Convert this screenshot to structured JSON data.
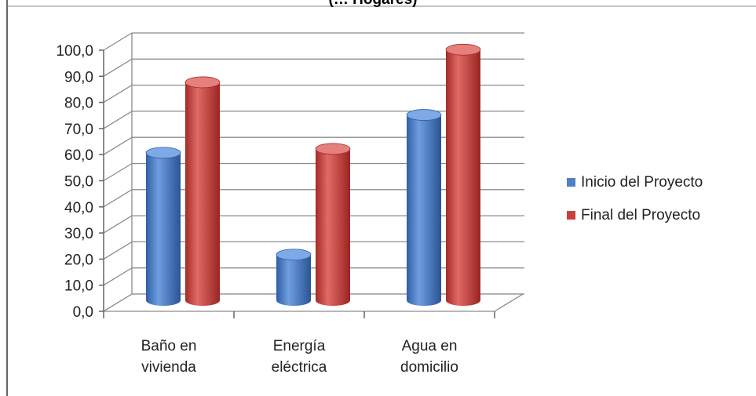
{
  "chart_data": {
    "type": "bar",
    "title": "(… Hogares)",
    "xlabel": "",
    "ylabel": "",
    "categories": [
      [
        "Baño en",
        "vivienda"
      ],
      [
        "Energía",
        "eléctrica"
      ],
      [
        "Agua en",
        "domicilio"
      ]
    ],
    "series": [
      {
        "name": "Inicio del Proyecto",
        "values": [
          56.5,
          17.5,
          71.0
        ],
        "color": "#4F7FC4"
      },
      {
        "name": "Final del Proyecto",
        "values": [
          83.5,
          58.0,
          96.0
        ],
        "color": "#C8413E"
      }
    ],
    "ylim": [
      0,
      100
    ],
    "yticks": [
      "0,0",
      "10,0",
      "20,0",
      "30,0",
      "40,0",
      "50,0",
      "60,0",
      "70,0",
      "80,0",
      "90,0",
      "100,0"
    ],
    "grid": true,
    "legend_position": "right",
    "style": "3d-cylinder"
  }
}
